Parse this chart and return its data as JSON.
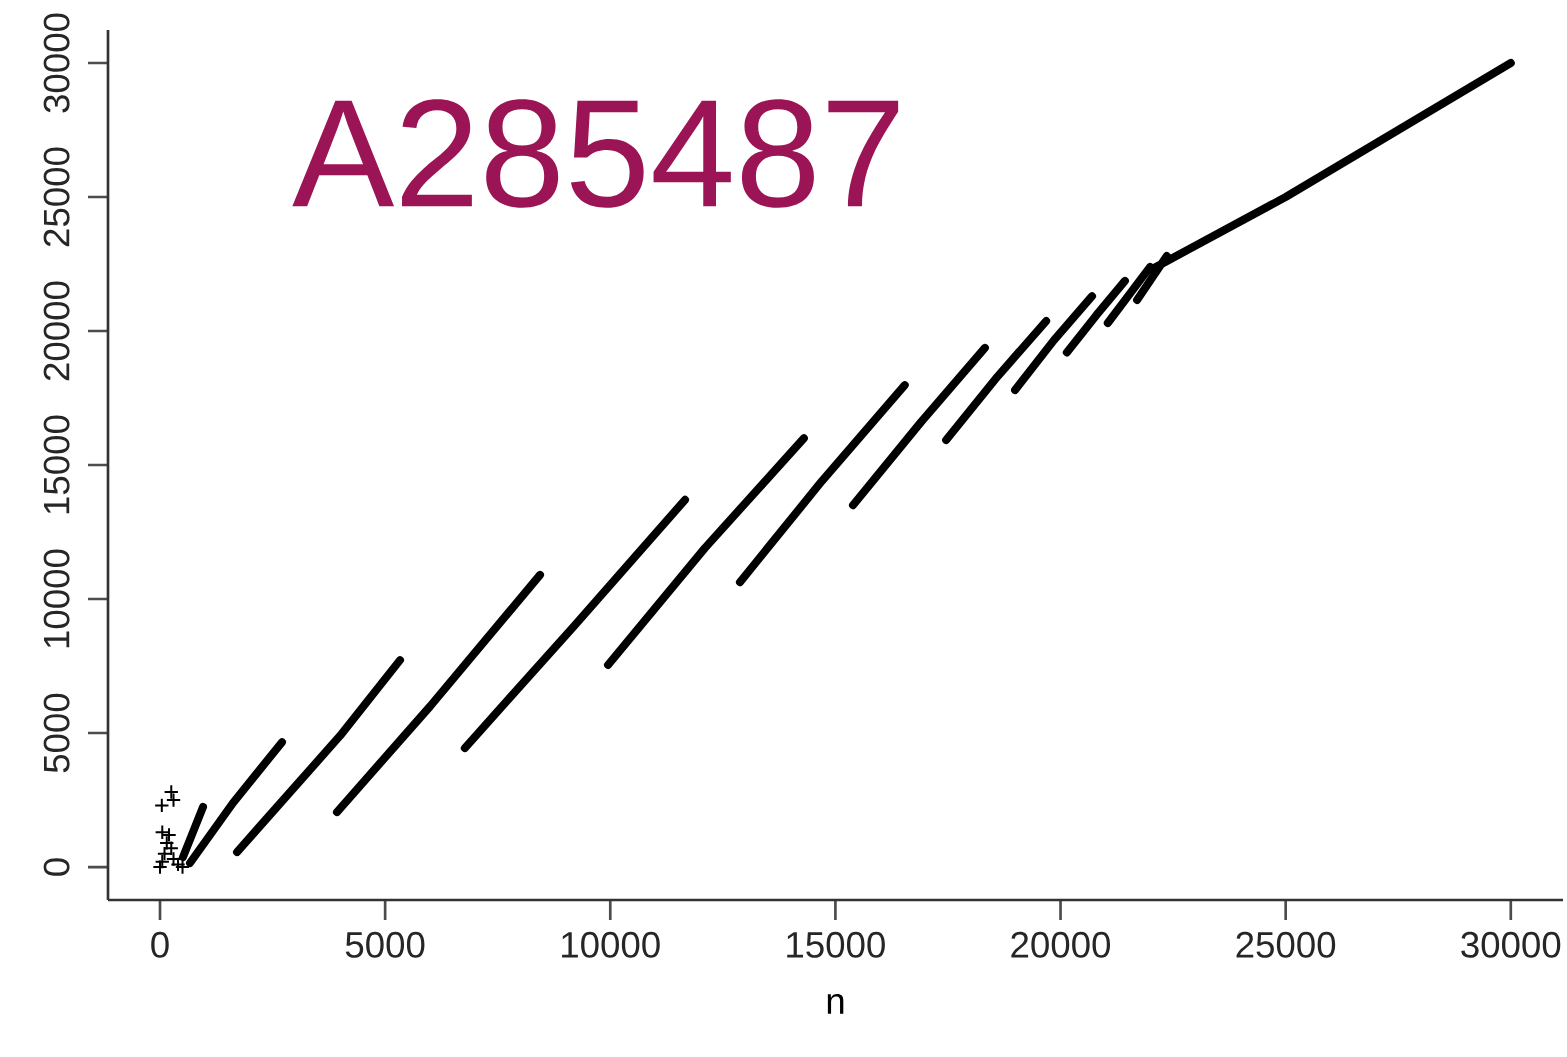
{
  "chart_data": {
    "type": "line",
    "title": "A285487",
    "xlabel": "n",
    "xlim": [
      -1155,
      31160
    ],
    "ylim": [
      -1230,
      31230
    ],
    "xticks": [
      0,
      5000,
      10000,
      15000,
      20000,
      25000,
      30000
    ],
    "yticks": [
      0,
      5000,
      10000,
      15000,
      20000,
      25000,
      30000
    ],
    "line_style": "solid",
    "marker": "none",
    "series": [
      {
        "color": "#000000",
        "x": [
          510,
          955,
          null,
          666,
          1620,
          2709,
          null,
          1710,
          4000,
          5330,
          null,
          3930,
          6000,
          8440,
          null,
          6770,
          9200,
          11660,
          null,
          9950,
          12100,
          14300,
          null,
          12880,
          14700,
          16540,
          null,
          15390,
          16900,
          18320,
          null,
          17460,
          18600,
          19680,
          null,
          18990,
          19850,
          20700,
          null,
          20140,
          20800,
          21430,
          null,
          21050,
          21990,
          null,
          21700,
          22360,
          null,
          22000,
          25000,
          30000
        ],
        "values": [
          370,
          2240,
          null,
          150,
          2390,
          4660,
          null,
          560,
          4900,
          7720,
          null,
          2050,
          6000,
          10900,
          null,
          4440,
          9000,
          13700,
          null,
          7540,
          11900,
          16000,
          null,
          10630,
          14400,
          17980,
          null,
          13500,
          16600,
          19370,
          null,
          15930,
          18300,
          20370,
          null,
          17800,
          19650,
          21300,
          null,
          19200,
          20600,
          21870,
          null,
          20300,
          22390,
          null,
          21160,
          22800,
          null,
          22280,
          25000,
          30000
        ]
      },
      {
        "color": "#000000",
        "type": "scatter",
        "marker": "cross",
        "x": [
          0,
          50,
          100,
          150,
          200,
          250,
          300,
          400,
          500,
          40,
          50,
          250,
          300
        ],
        "values": [
          0,
          200,
          500,
          900,
          1200,
          700,
          300,
          100,
          0,
          2300,
          1300,
          2800,
          2500
        ]
      }
    ]
  }
}
